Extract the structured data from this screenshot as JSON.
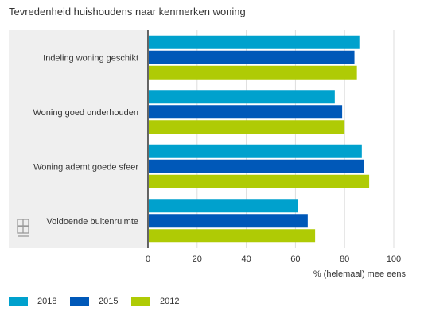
{
  "title": "Tevredenheid huishoudens naar kenmerken woning",
  "chart_data": {
    "type": "bar",
    "orientation": "horizontal",
    "title": "Tevredenheid huishoudens naar kenmerken woning",
    "xlabel": "% (helemaal) mee eens",
    "ylabel": "",
    "xlim": [
      0,
      100
    ],
    "xticks": [
      0,
      20,
      40,
      60,
      80,
      100
    ],
    "grid": true,
    "legend_position": "bottom-left",
    "categories": [
      "Indeling woning geschikt",
      "Woning goed onderhouden",
      "Woning ademt goede sfeer",
      "Voldoende buitenruimte"
    ],
    "series": [
      {
        "name": "2018",
        "color": "#00a1cd",
        "values": [
          86,
          76,
          87,
          61
        ]
      },
      {
        "name": "2015",
        "color": "#0058b8",
        "values": [
          84,
          79,
          88,
          65
        ]
      },
      {
        "name": "2012",
        "color": "#afcb05",
        "values": [
          85,
          80,
          90,
          68
        ]
      }
    ]
  },
  "logo_icon": "cbs-logo-icon"
}
